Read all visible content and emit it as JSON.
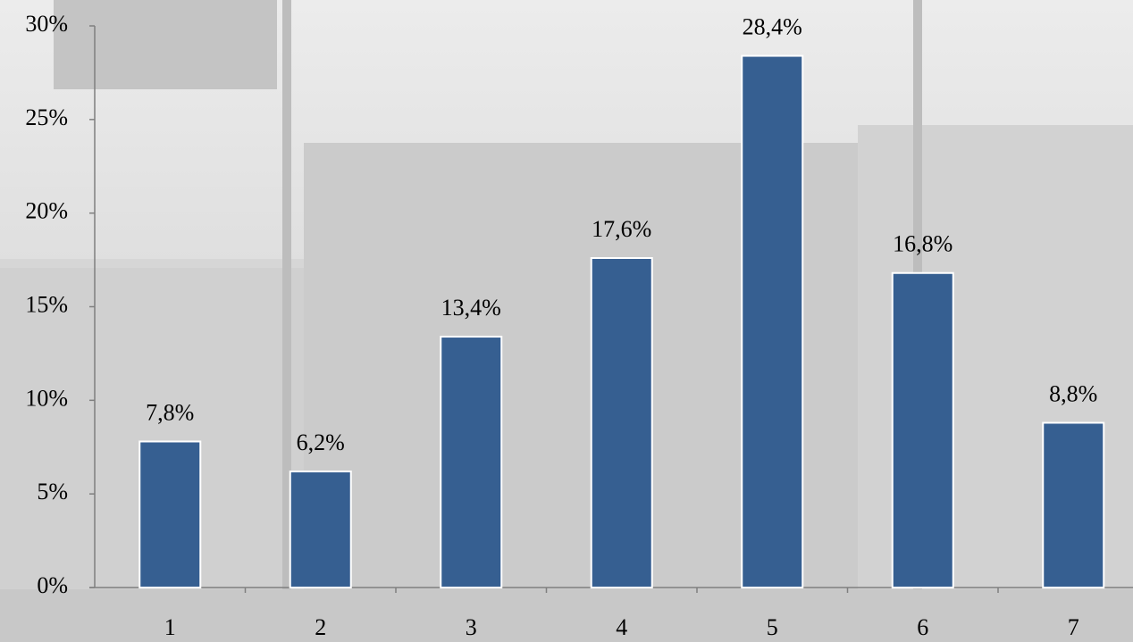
{
  "chart_data": {
    "type": "bar",
    "categories": [
      "1",
      "2",
      "3",
      "4",
      "5",
      "6",
      "7"
    ],
    "values": [
      7.8,
      6.2,
      13.4,
      17.6,
      28.4,
      16.8,
      8.8
    ],
    "value_labels": [
      "7,8%",
      "6,2%",
      "13,4%",
      "17,6%",
      "28,4%",
      "16,8%",
      "8,8%"
    ],
    "color": "#365f91",
    "ylim": [
      0,
      30
    ],
    "yticks": [
      {
        "value": 0,
        "label": "0%"
      },
      {
        "value": 5,
        "label": "5%"
      },
      {
        "value": 10,
        "label": "10%"
      },
      {
        "value": 15,
        "label": "15%"
      },
      {
        "value": 20,
        "label": "20%"
      },
      {
        "value": 25,
        "label": "25%"
      },
      {
        "value": 30,
        "label": "30%"
      }
    ],
    "grid": false
  }
}
